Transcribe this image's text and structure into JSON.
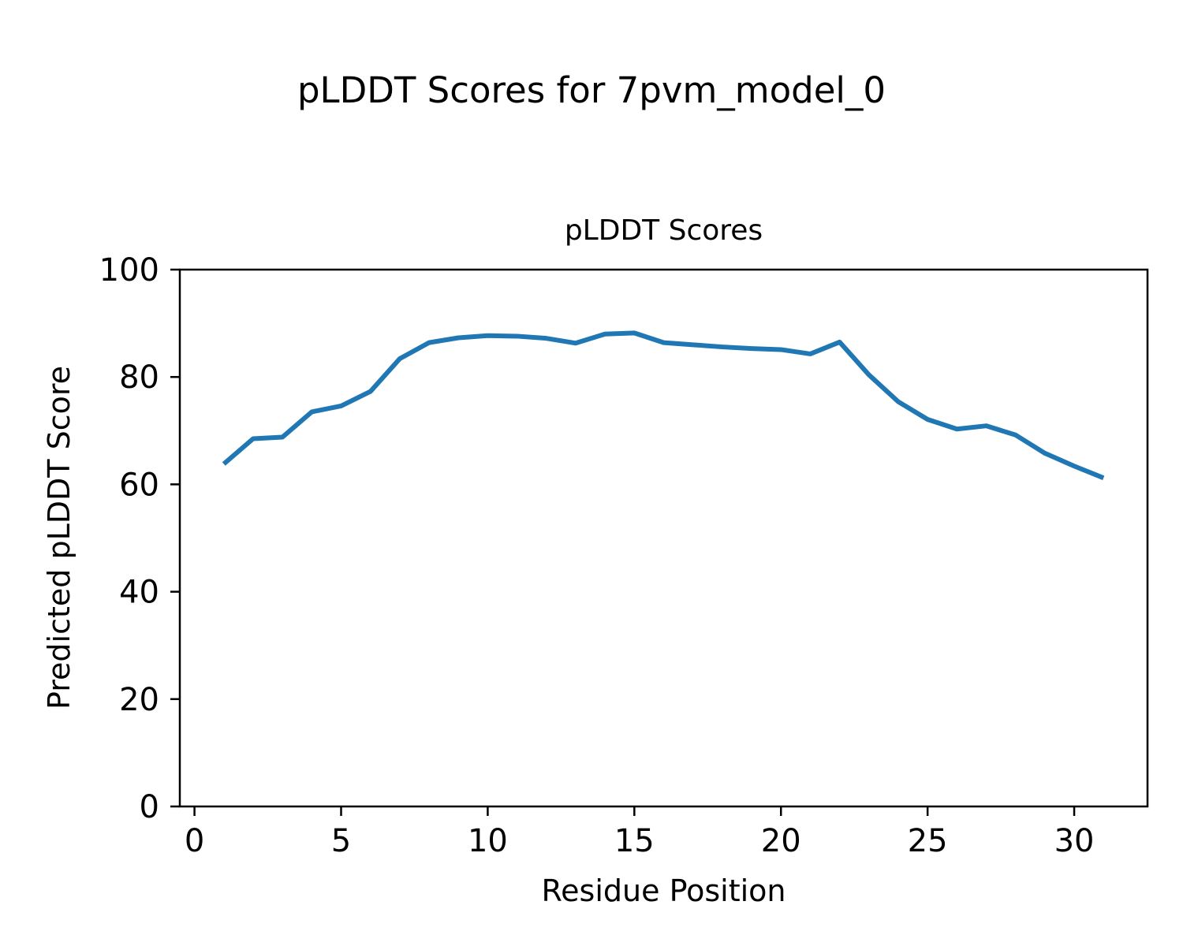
{
  "chart_data": {
    "type": "line",
    "suptitle": "pLDDT Scores for 7pvm_model_0",
    "title": "pLDDT Scores",
    "xlabel": "Residue Position",
    "ylabel": "Predicted pLDDT Score",
    "x": [
      1,
      2,
      3,
      4,
      5,
      6,
      7,
      8,
      9,
      10,
      11,
      12,
      13,
      14,
      15,
      16,
      17,
      18,
      19,
      20,
      21,
      22,
      23,
      24,
      25,
      26,
      27,
      28,
      29,
      30,
      31
    ],
    "series": [
      {
        "name": "pLDDT",
        "values": [
          63.8,
          68.5,
          68.8,
          73.5,
          74.6,
          77.3,
          83.4,
          86.4,
          87.3,
          87.7,
          87.6,
          87.2,
          86.3,
          88.0,
          88.2,
          86.4,
          86.0,
          85.6,
          85.3,
          85.1,
          84.3,
          86.5,
          80.4,
          75.4,
          72.1,
          70.3,
          70.9,
          69.2,
          65.8,
          63.4,
          61.2
        ]
      }
    ],
    "xlim": [
      -0.5,
      32.5
    ],
    "ylim": [
      0,
      100
    ],
    "xticks": [
      0,
      5,
      10,
      15,
      20,
      25,
      30
    ],
    "yticks": [
      0,
      20,
      40,
      60,
      80,
      100
    ],
    "grid": false,
    "legend": "none",
    "line_color": "#1f77b4",
    "axis_color": "#000000",
    "background": "#ffffff"
  }
}
